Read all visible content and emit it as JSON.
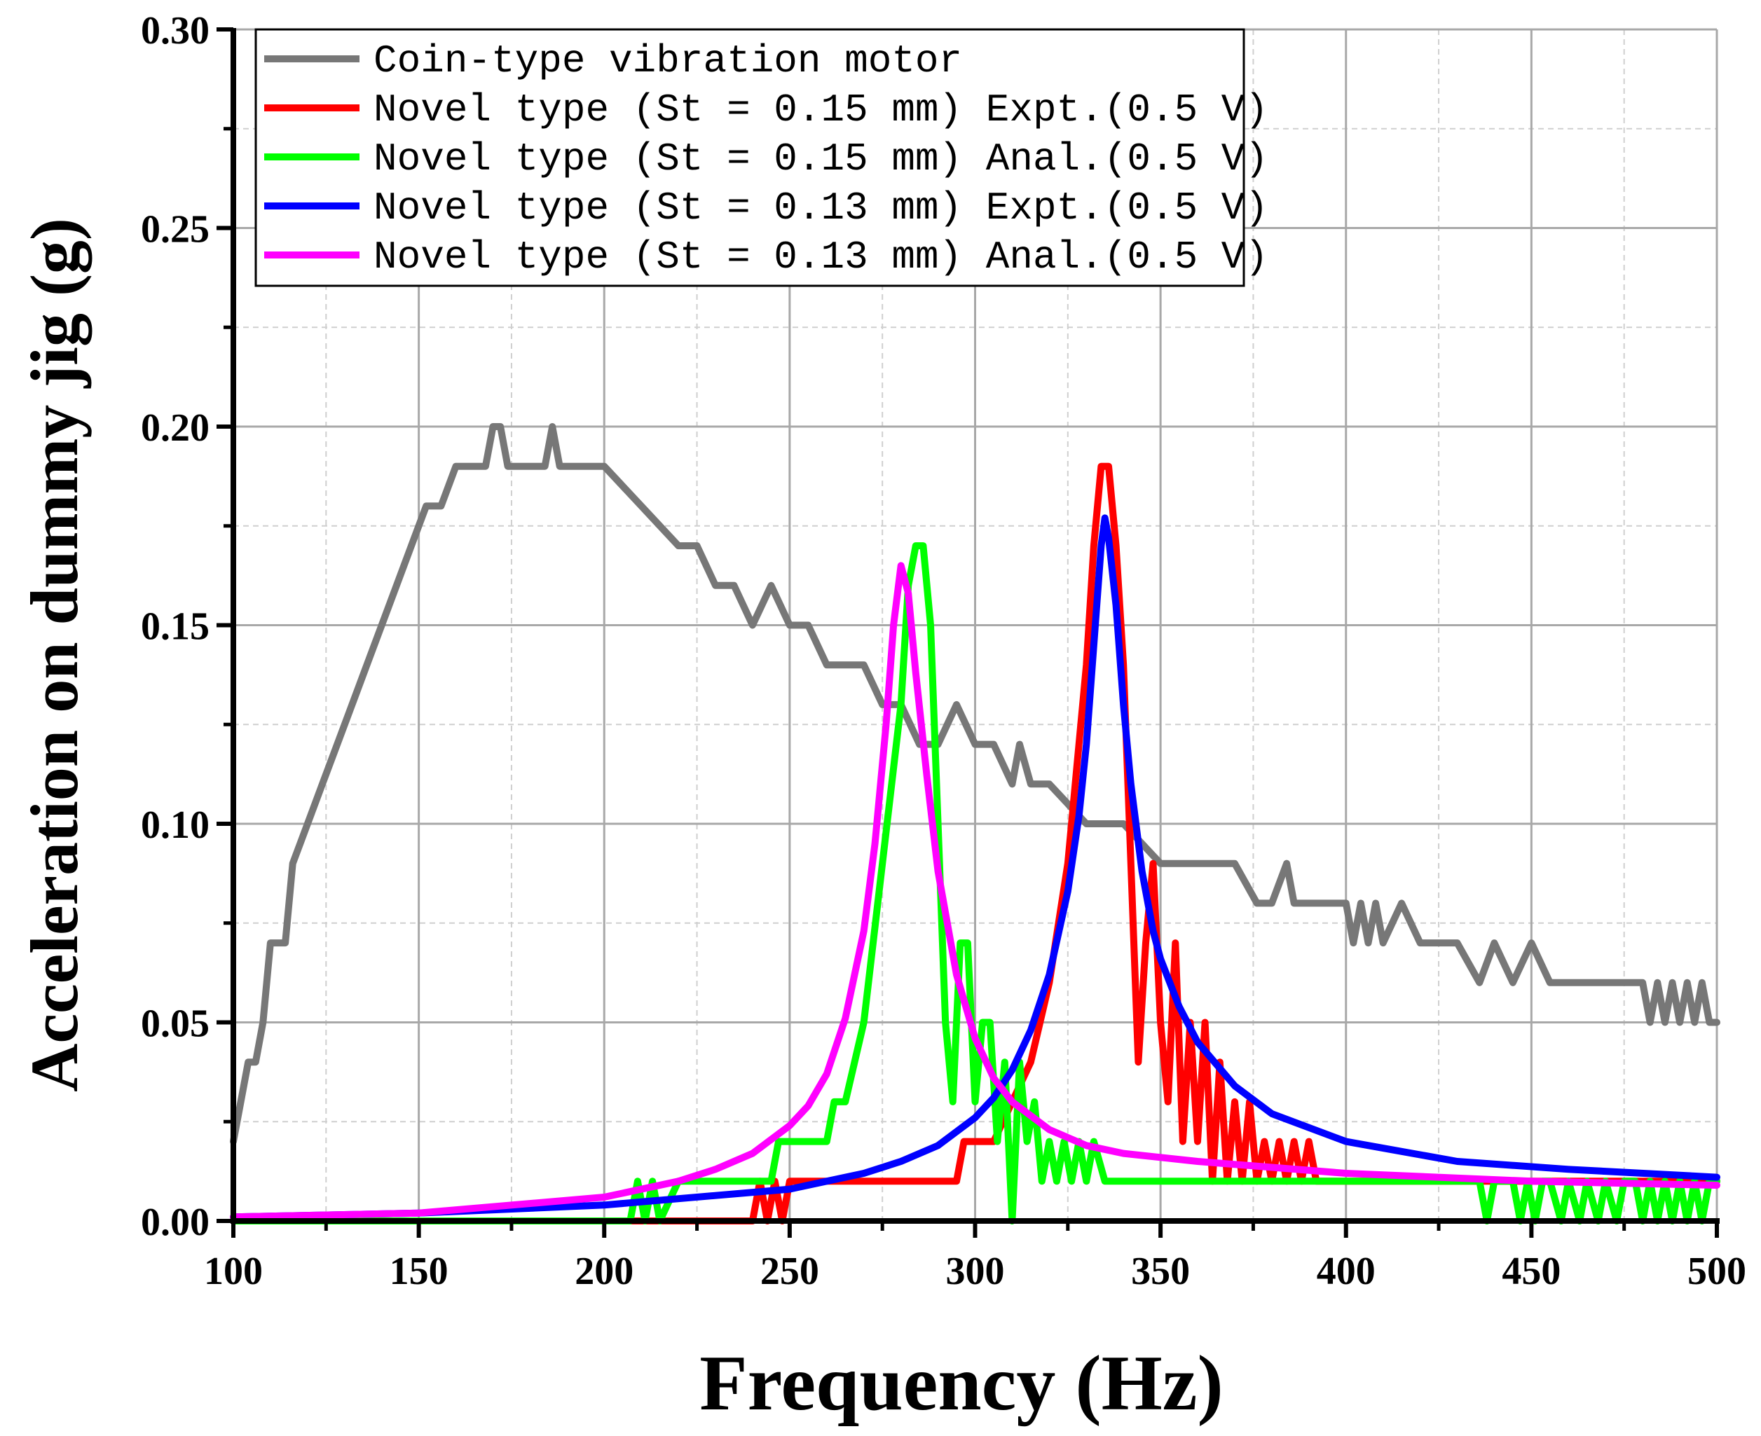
{
  "chart_data": {
    "type": "line",
    "xlabel": "Frequency (Hz)",
    "ylabel": "Acceleration on dummy jig (g)",
    "xlim": [
      100,
      500
    ],
    "ylim": [
      0,
      0.3
    ],
    "xticks": [
      100,
      150,
      200,
      250,
      300,
      350,
      400,
      450,
      500
    ],
    "xtick_labels": [
      "100",
      "150",
      "200",
      "250",
      "300",
      "350",
      "400",
      "450",
      "500"
    ],
    "yticks": [
      0,
      0.05,
      0.1,
      0.15,
      0.2,
      0.25,
      0.3
    ],
    "ytick_labels": [
      "0.00",
      "0.05",
      "0.10",
      "0.15",
      "0.20",
      "0.25",
      "0.30"
    ],
    "grid": true,
    "legend_position": "top-left",
    "series": [
      {
        "name": "Coin-type vibration motor",
        "color": "#777777",
        "x": [
          100,
          102,
          104,
          106,
          108,
          110,
          114,
          116,
          120,
          124,
          128,
          132,
          136,
          140,
          144,
          148,
          152,
          156,
          160,
          164,
          166,
          168,
          170,
          172,
          174,
          176,
          180,
          184,
          186,
          188,
          190,
          200,
          210,
          220,
          225,
          230,
          235,
          240,
          245,
          250,
          255,
          260,
          265,
          270,
          275,
          280,
          285,
          290,
          295,
          300,
          305,
          310,
          312,
          315,
          318,
          320,
          330,
          335,
          340,
          350,
          360,
          370,
          376,
          380,
          384,
          386,
          388,
          390,
          400,
          402,
          404,
          406,
          408,
          410,
          415,
          420,
          430,
          436,
          440,
          445,
          450,
          455,
          460,
          470,
          480,
          482,
          484,
          486,
          488,
          490,
          492,
          494,
          496,
          498,
          500
        ],
        "y": [
          0.02,
          0.03,
          0.04,
          0.04,
          0.05,
          0.07,
          0.07,
          0.09,
          0.1,
          0.11,
          0.12,
          0.13,
          0.14,
          0.15,
          0.16,
          0.17,
          0.18,
          0.18,
          0.19,
          0.19,
          0.19,
          0.19,
          0.2,
          0.2,
          0.19,
          0.19,
          0.19,
          0.19,
          0.2,
          0.19,
          0.19,
          0.19,
          0.18,
          0.17,
          0.17,
          0.16,
          0.16,
          0.15,
          0.16,
          0.15,
          0.15,
          0.14,
          0.14,
          0.14,
          0.13,
          0.13,
          0.12,
          0.12,
          0.13,
          0.12,
          0.12,
          0.11,
          0.12,
          0.11,
          0.11,
          0.11,
          0.1,
          0.1,
          0.1,
          0.09,
          0.09,
          0.09,
          0.08,
          0.08,
          0.09,
          0.08,
          0.08,
          0.08,
          0.08,
          0.07,
          0.08,
          0.07,
          0.08,
          0.07,
          0.08,
          0.07,
          0.07,
          0.06,
          0.07,
          0.06,
          0.07,
          0.06,
          0.06,
          0.06,
          0.06,
          0.05,
          0.06,
          0.05,
          0.06,
          0.05,
          0.06,
          0.05,
          0.06,
          0.05,
          0.05
        ]
      },
      {
        "name": "Novel type (St = 0.15 mm) Expt.(0.5 V)",
        "color": "#ff0000",
        "x": [
          100,
          240,
          242,
          244,
          246,
          248,
          250,
          255,
          260,
          280,
          295,
          297,
          300,
          305,
          310,
          315,
          320,
          325,
          330,
          332,
          334,
          336,
          338,
          340,
          342,
          344,
          346,
          348,
          350,
          352,
          354,
          356,
          358,
          360,
          362,
          364,
          366,
          368,
          370,
          372,
          374,
          376,
          378,
          380,
          382,
          384,
          386,
          388,
          390,
          392,
          400,
          450,
          500
        ],
        "y": [
          0,
          0,
          0.01,
          0,
          0.01,
          0,
          0.01,
          0.01,
          0.01,
          0.01,
          0.01,
          0.02,
          0.02,
          0.02,
          0.03,
          0.04,
          0.06,
          0.09,
          0.14,
          0.17,
          0.19,
          0.19,
          0.17,
          0.14,
          0.09,
          0.04,
          0.07,
          0.09,
          0.05,
          0.03,
          0.07,
          0.02,
          0.05,
          0.02,
          0.05,
          0.01,
          0.04,
          0.01,
          0.03,
          0.01,
          0.03,
          0.01,
          0.02,
          0.01,
          0.02,
          0.01,
          0.02,
          0.01,
          0.02,
          0.01,
          0.01,
          0.01,
          0.01
        ]
      },
      {
        "name": "Novel type (St = 0.15 mm) Anal.(0.5 V)",
        "color": "#00ff00",
        "x": [
          100,
          207,
          209,
          211,
          213,
          215,
          220,
          240,
          245,
          247,
          250,
          255,
          260,
          262,
          265,
          270,
          275,
          280,
          282,
          284,
          286,
          288,
          290,
          292,
          294,
          296,
          298,
          300,
          302,
          304,
          306,
          308,
          310,
          312,
          314,
          316,
          318,
          320,
          322,
          324,
          326,
          328,
          330,
          332,
          335,
          340,
          350,
          400,
          430,
          436,
          438,
          440,
          445,
          447,
          449,
          451,
          453,
          455,
          458,
          460,
          463,
          465,
          468,
          470,
          473,
          475,
          478,
          480,
          482,
          484,
          486,
          488,
          490,
          492,
          494,
          496,
          498,
          500
        ],
        "y": [
          0,
          0,
          0.01,
          0,
          0.01,
          0,
          0.01,
          0.01,
          0.01,
          0.02,
          0.02,
          0.02,
          0.02,
          0.03,
          0.03,
          0.05,
          0.09,
          0.13,
          0.16,
          0.17,
          0.17,
          0.15,
          0.1,
          0.05,
          0.03,
          0.07,
          0.07,
          0.03,
          0.05,
          0.05,
          0.02,
          0.04,
          0.0,
          0.04,
          0.02,
          0.03,
          0.01,
          0.02,
          0.01,
          0.02,
          0.01,
          0.02,
          0.01,
          0.02,
          0.01,
          0.01,
          0.01,
          0.01,
          0.01,
          0.01,
          0.0,
          0.01,
          0.01,
          0.0,
          0.01,
          0.0,
          0.01,
          0.01,
          0.0,
          0.01,
          0.0,
          0.01,
          0.0,
          0.01,
          0.0,
          0.01,
          0.01,
          0.0,
          0.01,
          0.0,
          0.01,
          0.0,
          0.01,
          0.0,
          0.01,
          0.0,
          0.01,
          0.01
        ]
      },
      {
        "name": "Novel type (St = 0.13 mm) Expt.(0.5 V)",
        "color": "#0000ff",
        "x": [
          100,
          150,
          200,
          250,
          270,
          280,
          290,
          300,
          305,
          310,
          315,
          320,
          325,
          328,
          330,
          332,
          334,
          335,
          336,
          338,
          340,
          342,
          345,
          348,
          350,
          355,
          360,
          370,
          380,
          400,
          430,
          460,
          500
        ],
        "y": [
          0.001,
          0.002,
          0.004,
          0.008,
          0.012,
          0.015,
          0.019,
          0.026,
          0.031,
          0.038,
          0.048,
          0.062,
          0.083,
          0.102,
          0.12,
          0.145,
          0.17,
          0.177,
          0.172,
          0.155,
          0.13,
          0.11,
          0.088,
          0.073,
          0.066,
          0.054,
          0.045,
          0.034,
          0.027,
          0.02,
          0.015,
          0.013,
          0.011
        ]
      },
      {
        "name": "Novel type (St = 0.13 mm) Anal.(0.5 V)",
        "color": "#ff00ff",
        "x": [
          100,
          150,
          200,
          220,
          230,
          240,
          250,
          255,
          260,
          265,
          270,
          273,
          276,
          278,
          280,
          282,
          284,
          287,
          290,
          295,
          300,
          305,
          310,
          320,
          330,
          340,
          360,
          400,
          450,
          500
        ],
        "y": [
          0.001,
          0.002,
          0.006,
          0.01,
          0.013,
          0.017,
          0.024,
          0.029,
          0.037,
          0.051,
          0.073,
          0.095,
          0.125,
          0.15,
          0.165,
          0.158,
          0.138,
          0.112,
          0.088,
          0.062,
          0.046,
          0.036,
          0.03,
          0.023,
          0.019,
          0.017,
          0.015,
          0.012,
          0.01,
          0.009
        ]
      }
    ]
  }
}
